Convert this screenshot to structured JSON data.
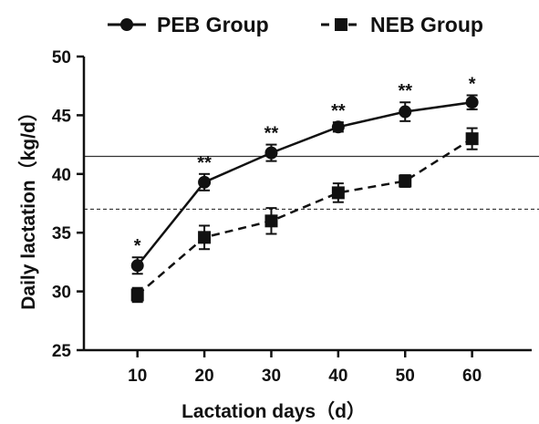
{
  "chart_data": {
    "type": "line",
    "xlabel": "Lactation days（d）",
    "ylabel": "Daily lactation（kg/d）",
    "x": [
      10,
      20,
      30,
      40,
      50,
      60
    ],
    "x_ticks": [
      10,
      20,
      30,
      40,
      50,
      60
    ],
    "xlim": [
      2,
      70
    ],
    "ylim": [
      25,
      50
    ],
    "y_ticks": [
      25,
      30,
      35,
      40,
      45,
      50
    ],
    "grid": false,
    "legend_position": "top",
    "series": [
      {
        "name": "PEB Group",
        "marker": "circle",
        "line_style": "solid",
        "color": "#111111",
        "values": [
          32.2,
          39.3,
          41.8,
          44.0,
          45.3,
          46.1
        ],
        "error": [
          0.7,
          0.7,
          0.7,
          0.4,
          0.8,
          0.6
        ],
        "significance": [
          "*",
          "**",
          "**",
          "**",
          "**",
          "*"
        ],
        "mean_line": 41.5
      },
      {
        "name": "NEB Group",
        "marker": "square",
        "line_style": "dashed",
        "color": "#111111",
        "values": [
          29.7,
          34.6,
          36.0,
          38.4,
          39.4,
          43.0
        ],
        "error": [
          0.6,
          1.0,
          1.1,
          0.8,
          0.5,
          0.9
        ],
        "mean_line": 37.0
      }
    ]
  }
}
